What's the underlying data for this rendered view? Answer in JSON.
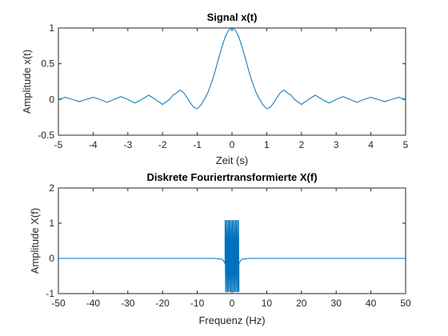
{
  "chart_data": [
    {
      "type": "line",
      "title": "Signal x(t)",
      "xlabel": "Zeit (s)",
      "ylabel": "Amplitude x(t)",
      "xlim": [
        -5,
        5
      ],
      "ylim": [
        -0.5,
        1
      ],
      "xticks": [
        -5,
        -4,
        -3,
        -2,
        -1,
        0,
        1,
        2,
        3,
        4,
        5
      ],
      "xtick_labels": [
        "-5",
        "-4",
        "-3",
        "-2",
        "-1",
        "0",
        "1",
        "2",
        "3",
        "4",
        "5"
      ],
      "yticks": [
        -0.5,
        0,
        0.5,
        1
      ],
      "ytick_labels": [
        "-0.5",
        "0",
        "0.5",
        "1"
      ],
      "grid": false,
      "color": "#0072BD",
      "series": [
        {
          "x": [
            -5.0,
            -4.8,
            -4.6,
            -4.4,
            -4.2,
            -4.0,
            -3.8,
            -3.6,
            -3.4,
            -3.2,
            -3.0,
            -2.8,
            -2.6,
            -2.4,
            -2.2,
            -2.0,
            -1.8,
            -1.7,
            -1.6,
            -1.5,
            -1.4,
            -1.3,
            -1.2,
            -1.1,
            -1.0,
            -0.9,
            -0.8,
            -0.7,
            -0.6,
            -0.5,
            -0.4,
            -0.3,
            -0.2,
            -0.1,
            0.0,
            0.1,
            0.2,
            0.3,
            0.4,
            0.5,
            0.6,
            0.7,
            0.8,
            0.9,
            1.0,
            1.1,
            1.2,
            1.3,
            1.4,
            1.5,
            1.6,
            1.7,
            1.8,
            2.0,
            2.2,
            2.4,
            2.6,
            2.8,
            3.0,
            3.2,
            3.4,
            3.6,
            3.8,
            4.0,
            4.2,
            4.4,
            4.6,
            4.8,
            5.0
          ],
          "y": [
            0.0,
            0.03,
            0.0,
            -0.03,
            0.0,
            0.03,
            0.0,
            -0.04,
            0.0,
            0.04,
            0.0,
            -0.05,
            0.0,
            0.06,
            0.0,
            -0.07,
            0.0,
            0.06,
            0.09,
            0.13,
            0.1,
            0.03,
            -0.05,
            -0.11,
            -0.13,
            -0.08,
            0.0,
            0.09,
            0.22,
            0.37,
            0.55,
            0.72,
            0.87,
            0.97,
            1.0,
            0.97,
            0.87,
            0.72,
            0.55,
            0.37,
            0.22,
            0.09,
            0.0,
            -0.08,
            -0.13,
            -0.11,
            -0.05,
            0.03,
            0.1,
            0.13,
            0.09,
            0.06,
            0.0,
            -0.07,
            0.0,
            0.06,
            0.0,
            -0.05,
            0.0,
            0.04,
            0.0,
            -0.04,
            0.0,
            0.03,
            0.0,
            -0.03,
            0.0,
            0.03,
            0.0
          ]
        }
      ]
    },
    {
      "type": "line",
      "title": "Diskrete Fouriertransformierte X(f)",
      "xlabel": "Frequenz (Hz)",
      "ylabel": "Amplitude X(f)",
      "xlim": [
        -50,
        50
      ],
      "ylim": [
        -1,
        2
      ],
      "xticks": [
        -50,
        -40,
        -30,
        -20,
        -10,
        0,
        10,
        20,
        30,
        40,
        50
      ],
      "xtick_labels": [
        "-50",
        "-40",
        "-30",
        "-20",
        "-10",
        "0",
        "10",
        "20",
        "30",
        "40",
        "50"
      ],
      "yticks": [
        -1,
        0,
        1,
        2
      ],
      "ytick_labels": [
        "-1",
        "0",
        "1",
        "2"
      ],
      "grid": false,
      "color": "#0072BD",
      "series": [
        {
          "x": [
            -50,
            -5,
            -3,
            -2.5,
            -2,
            -2,
            -1.85,
            -1.7,
            -1.55,
            -1.4,
            -1.25,
            -1.1,
            -0.95,
            -0.8,
            -0.65,
            -0.5,
            -0.35,
            -0.2,
            -0.05,
            0.1,
            0.25,
            0.4,
            0.55,
            0.7,
            0.85,
            1.0,
            1.15,
            1.3,
            1.45,
            1.6,
            1.75,
            1.9,
            2,
            2,
            2.5,
            3,
            5,
            50
          ],
          "y": [
            0,
            0,
            -0.02,
            -0.06,
            -0.15,
            1.08,
            -0.95,
            1.08,
            -0.95,
            1.08,
            -0.95,
            1.08,
            -0.95,
            1.08,
            -0.95,
            1.08,
            -0.95,
            1.08,
            -0.95,
            1.08,
            -0.95,
            1.08,
            -0.95,
            1.08,
            -0.95,
            1.08,
            -0.95,
            1.08,
            -0.95,
            1.08,
            -0.95,
            1.08,
            -0.95,
            -0.15,
            -0.06,
            -0.02,
            0,
            0
          ]
        }
      ]
    }
  ]
}
